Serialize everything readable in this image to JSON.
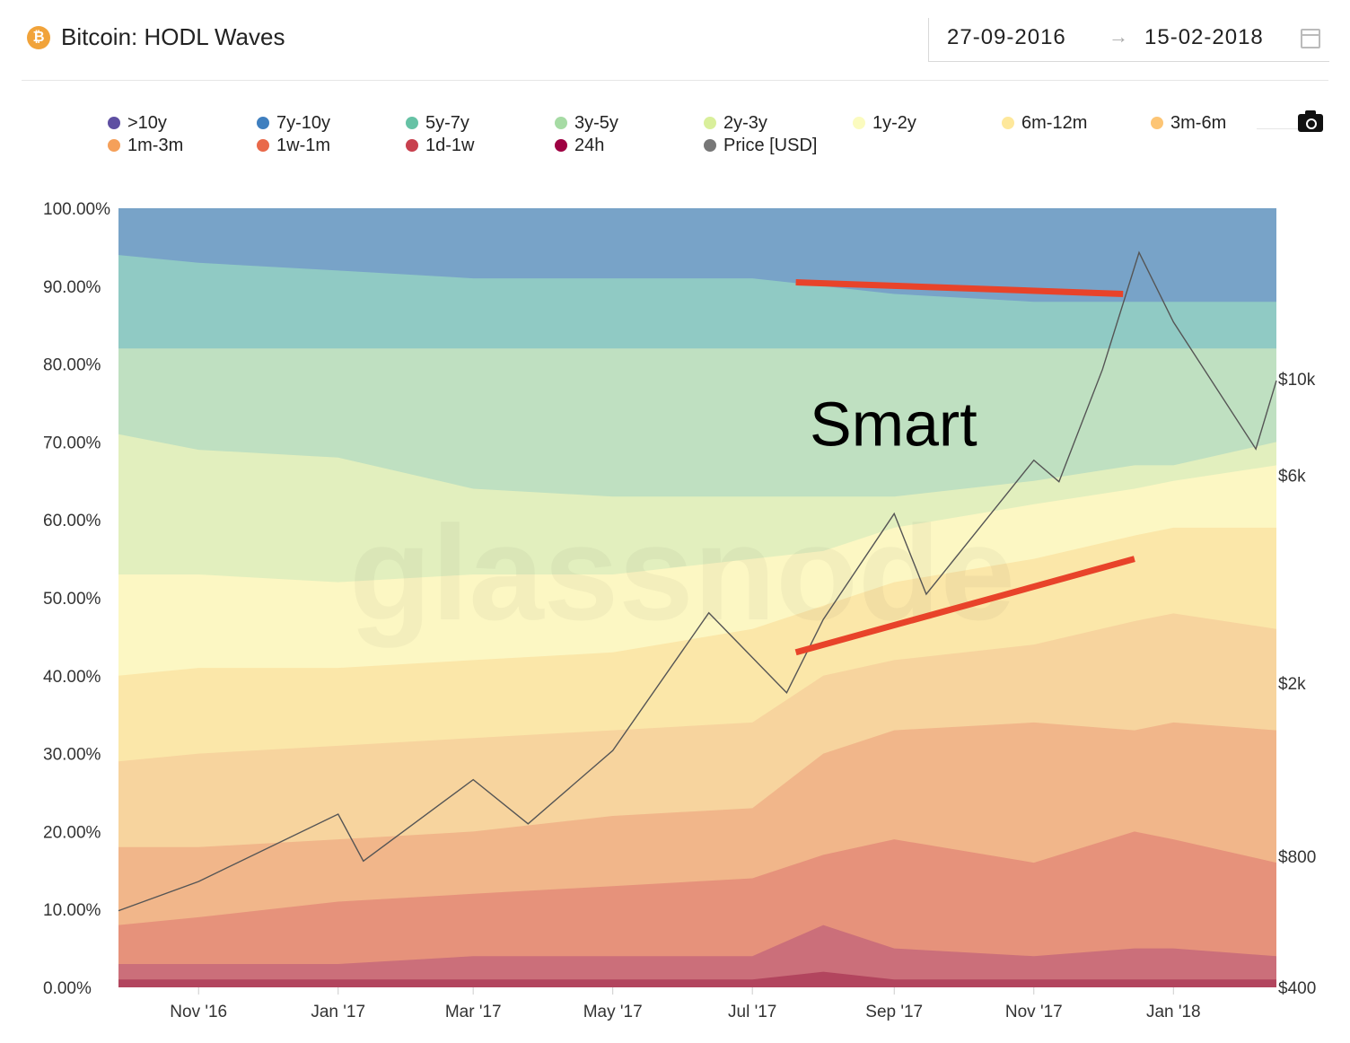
{
  "header": {
    "title": "Bitcoin: HODL Waves",
    "coin_icon": "bitcoin-icon",
    "date_from": "27-09-2016",
    "date_to": "15-02-2018",
    "arrow": "→"
  },
  "legend": {
    "items": [
      {
        "label": ">10y",
        "color": "#5e4fa2"
      },
      {
        "label": "7y-10y",
        "color": "#3f7fbf"
      },
      {
        "label": "5y-7y",
        "color": "#66c2a5"
      },
      {
        "label": "3y-5y",
        "color": "#a6dba4"
      },
      {
        "label": "2y-3y",
        "color": "#d9ef9b"
      },
      {
        "label": "1y-2y",
        "color": "#fbfbbf"
      },
      {
        "label": "6m-12m",
        "color": "#fee89b"
      },
      {
        "label": "3m-6m",
        "color": "#fdc574"
      },
      {
        "label": "1m-3m",
        "color": "#f5a05a"
      },
      {
        "label": "1w-1m",
        "color": "#e9694a"
      },
      {
        "label": "1d-1w",
        "color": "#c8404e"
      },
      {
        "label": "24h",
        "color": "#9e0142"
      },
      {
        "label": "Price [USD]",
        "color": "#777777"
      }
    ]
  },
  "chart_data": {
    "type": "area",
    "title": "Bitcoin: HODL Waves",
    "x_tick_labels": [
      "Nov '16",
      "Jan '17",
      "Mar '17",
      "May '17",
      "Jul '17",
      "Sep '17",
      "Nov '17",
      "Jan '18"
    ],
    "y_left": {
      "ticks": [
        "0.00%",
        "10.00%",
        "20.00%",
        "30.00%",
        "40.00%",
        "50.00%",
        "60.00%",
        "70.00%",
        "80.00%",
        "90.00%",
        "100.00%"
      ],
      "ylim": [
        0,
        100
      ]
    },
    "y_right": {
      "label": "Price [USD]",
      "scale": "log",
      "ticks": [
        "$400",
        "$800",
        "$2k",
        "$6k",
        "$10k"
      ]
    },
    "x": [
      "2016-09-27",
      "2016-11-01",
      "2017-01-01",
      "2017-03-01",
      "2017-05-01",
      "2017-07-01",
      "2017-08-01",
      "2017-09-01",
      "2017-11-01",
      "2017-12-15",
      "2018-01-01",
      "2018-02-15"
    ],
    "series": [
      {
        "name": "24h",
        "values": [
          1,
          1,
          1,
          1,
          1,
          1,
          2,
          1,
          1,
          1,
          1,
          1
        ]
      },
      {
        "name": "1d-1w",
        "values": [
          3,
          3,
          3,
          4,
          4,
          4,
          8,
          5,
          4,
          5,
          5,
          4
        ]
      },
      {
        "name": "1w-1m",
        "values": [
          8,
          9,
          11,
          12,
          13,
          14,
          17,
          19,
          16,
          20,
          19,
          16
        ]
      },
      {
        "name": "1m-3m",
        "values": [
          18,
          18,
          19,
          20,
          22,
          23,
          30,
          33,
          34,
          33,
          34,
          33
        ]
      },
      {
        "name": "3m-6m",
        "values": [
          29,
          30,
          31,
          32,
          33,
          34,
          40,
          42,
          44,
          47,
          48,
          46
        ]
      },
      {
        "name": "6m-12m",
        "values": [
          40,
          41,
          41,
          42,
          43,
          46,
          49,
          52,
          55,
          58,
          59,
          59
        ]
      },
      {
        "name": "1y-2y",
        "values": [
          53,
          53,
          52,
          53,
          53,
          55,
          56,
          59,
          62,
          64,
          65,
          67
        ]
      },
      {
        "name": "2y-3y",
        "values": [
          71,
          69,
          68,
          64,
          63,
          63,
          63,
          63,
          65,
          67,
          67,
          70
        ]
      },
      {
        "name": "3y-5y",
        "values": [
          82,
          82,
          82,
          82,
          82,
          82,
          82,
          82,
          82,
          82,
          82,
          82
        ]
      },
      {
        "name": "5y-7y",
        "values": [
          94,
          93,
          92,
          91,
          91,
          91,
          90,
          89,
          88,
          88,
          88,
          88
        ]
      },
      {
        "name": ">10y + 7y-10y",
        "values": [
          100,
          100,
          100,
          100,
          100,
          100,
          100,
          100,
          100,
          100,
          100,
          100
        ]
      }
    ],
    "price_usd": {
      "x": [
        "2016-09-27",
        "2016-11-01",
        "2017-01-01",
        "2017-01-12",
        "2017-03-01",
        "2017-03-25",
        "2017-05-01",
        "2017-06-12",
        "2017-07-16",
        "2017-08-01",
        "2017-09-01",
        "2017-09-15",
        "2017-11-01",
        "2017-11-12",
        "2017-12-01",
        "2017-12-17",
        "2018-01-01",
        "2018-02-06",
        "2018-02-15"
      ],
      "values": [
        600,
        700,
        1000,
        780,
        1200,
        950,
        1400,
        2900,
        1900,
        2800,
        4900,
        3200,
        6500,
        5800,
        10500,
        19500,
        13500,
        6900,
        9900
      ]
    },
    "annotations": [
      {
        "text": "Smart"
      },
      {
        "type": "trendline",
        "from": [
          "2017-07-20",
          90.5
        ],
        "to": [
          "2017-12-10",
          89
        ]
      },
      {
        "type": "trendline",
        "from": [
          "2017-07-20",
          43
        ],
        "to": [
          "2017-12-15",
          55
        ]
      }
    ],
    "watermark": "glassnode"
  }
}
